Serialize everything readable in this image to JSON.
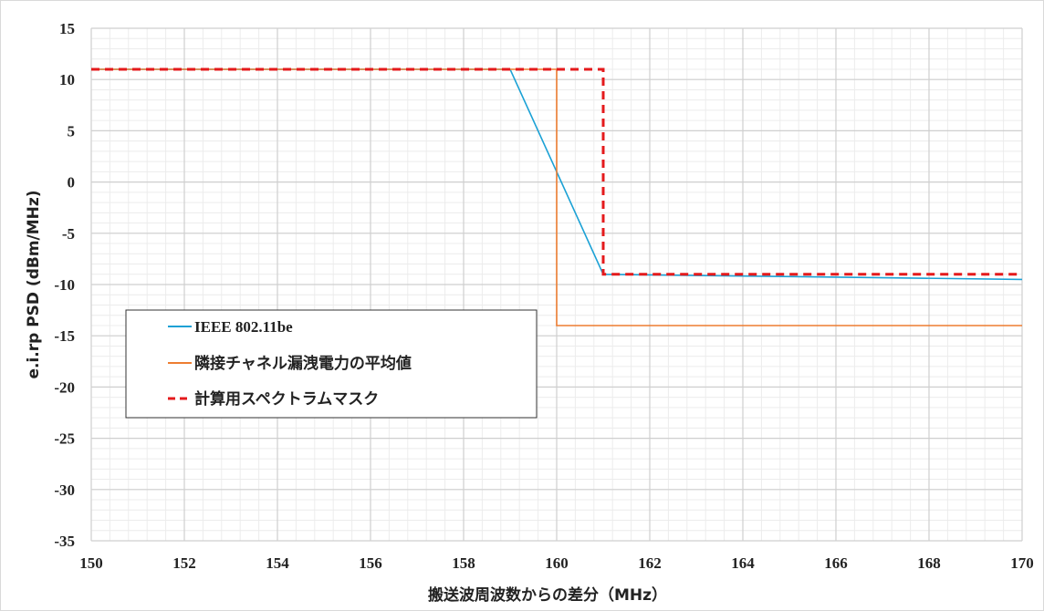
{
  "chart_data": {
    "type": "line",
    "xlabel": "搬送波周波数からの差分（MHz）",
    "ylabel": "e.i.rp PSD (dBm/MHz)",
    "xlim": [
      150,
      170
    ],
    "ylim": [
      -35,
      15
    ],
    "x_ticks": [
      150,
      152,
      154,
      156,
      158,
      160,
      162,
      164,
      166,
      168,
      170
    ],
    "y_ticks": [
      15,
      10,
      5,
      0,
      -5,
      -10,
      -15,
      -20,
      -25,
      -30,
      -35
    ],
    "grid": "major and minor",
    "legend_position": "bottom-left",
    "series": [
      {
        "name": "IEEE 802.11be",
        "color": "#1BA1D5",
        "style": "solid",
        "points": [
          [
            150,
            11
          ],
          [
            159,
            11
          ],
          [
            161,
            -9
          ],
          [
            170,
            -9.5
          ]
        ]
      },
      {
        "name": "隣接チャネル漏洩電力の平均値",
        "color": "#ED7D31",
        "style": "solid",
        "points": [
          [
            150,
            11
          ],
          [
            160,
            11
          ],
          [
            160,
            -14
          ],
          [
            170,
            -14
          ]
        ]
      },
      {
        "name": "計算用スペクトラムマスク",
        "color": "#E41A1C",
        "style": "dashed",
        "points": [
          [
            150,
            11
          ],
          [
            161,
            11
          ],
          [
            161,
            -9
          ],
          [
            170,
            -9
          ]
        ]
      }
    ]
  }
}
